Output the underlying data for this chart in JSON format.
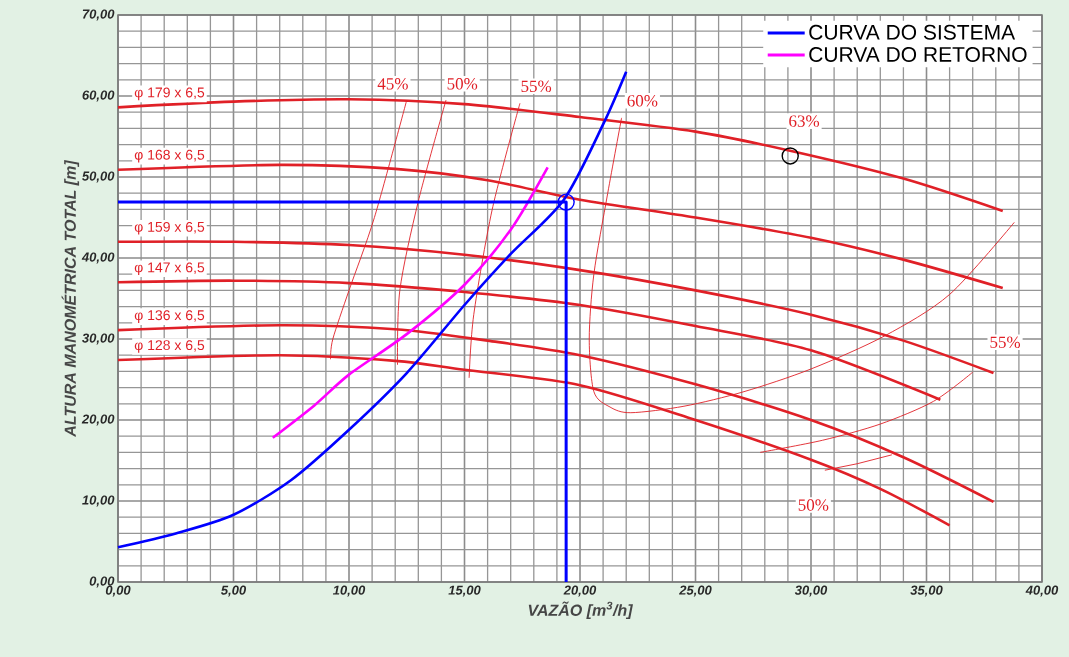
{
  "chart_data": {
    "type": "line",
    "xlabel": "VAZÃO [m$^{3}$/h]",
    "ylabel": "ALTURA MANOMÉTRICA TOTAL [m]",
    "xlim": [
      0,
      40
    ],
    "ylim": [
      0,
      70
    ],
    "xticks": [
      {
        "value": 0,
        "label": "0,00"
      },
      {
        "value": 5,
        "label": "5,00"
      },
      {
        "value": 10,
        "label": "10,00"
      },
      {
        "value": 15,
        "label": "15,00"
      },
      {
        "value": 20,
        "label": "20,00"
      },
      {
        "value": 25,
        "label": "25,00"
      },
      {
        "value": 30,
        "label": "30,00"
      },
      {
        "value": 35,
        "label": "35,00"
      },
      {
        "value": 40,
        "label": "40,00"
      }
    ],
    "yticks": [
      {
        "value": 0,
        "label": "0,00"
      },
      {
        "value": 10,
        "label": "10,00"
      },
      {
        "value": 20,
        "label": "20,00"
      },
      {
        "value": 30,
        "label": "30,00"
      },
      {
        "value": 40,
        "label": "40,00"
      },
      {
        "value": 50,
        "label": "50,00"
      },
      {
        "value": 60,
        "label": "60,00"
      },
      {
        "value": 70,
        "label": "70,00"
      }
    ],
    "grid": true,
    "legend": "top right",
    "series": [
      {
        "name": "φ 179 x 6,5",
        "color": "#e02027",
        "x": [
          0,
          5,
          10,
          15,
          20,
          25,
          29,
          34,
          38.3
        ],
        "values": [
          58.6,
          59.3,
          59.6,
          59.0,
          57.4,
          55.6,
          53.3,
          49.8,
          45.8
        ]
      },
      {
        "name": "φ 168 x 6,5",
        "color": "#e02027",
        "x": [
          0,
          7,
          12,
          16,
          20,
          25,
          30,
          34,
          38.3
        ],
        "values": [
          50.9,
          51.5,
          51.0,
          49.6,
          47.2,
          45.0,
          42.5,
          39.8,
          36.3
        ]
      },
      {
        "name": "φ 159 x 6,5",
        "color": "#e02027",
        "x": [
          0,
          5,
          10,
          15,
          20,
          25,
          30,
          34,
          37.9
        ],
        "values": [
          42.0,
          42.0,
          41.6,
          40.4,
          38.5,
          36.0,
          33.0,
          29.8,
          25.8
        ]
      },
      {
        "name": "φ 147 x 6,5",
        "color": "#e02027",
        "x": [
          0,
          5,
          10,
          15,
          20,
          25,
          30,
          35.6
        ],
        "values": [
          37.0,
          37.2,
          36.9,
          35.8,
          34.2,
          31.6,
          28.6,
          22.5
        ]
      },
      {
        "name": "φ 136 x 6,5",
        "color": "#e02027",
        "x": [
          0,
          7,
          12,
          16,
          20,
          25,
          30,
          34,
          37.9
        ],
        "values": [
          31.1,
          31.7,
          31.2,
          29.8,
          28.0,
          24.4,
          20.0,
          15.4,
          9.9
        ]
      },
      {
        "name": "φ 128 x 6,5",
        "color": "#e02027",
        "x": [
          0,
          7,
          12,
          15,
          20,
          25,
          30,
          33,
          36
        ],
        "values": [
          27.4,
          28.0,
          27.3,
          26.2,
          24.3,
          20.0,
          15.1,
          11.5,
          7.0
        ]
      },
      {
        "color": "#e02027",
        "x": [
          12.5,
          11.1,
          10.0,
          9.3,
          9.2
        ],
        "values": [
          59.5,
          45.0,
          36.0,
          30.0,
          27.5
        ]
      },
      {
        "color": "#e02027",
        "x": [
          14.2,
          13.0,
          12.2,
          12.1
        ],
        "values": [
          59.5,
          47.0,
          36.0,
          26.8
        ]
      },
      {
        "color": "#e02027",
        "x": [
          17.4,
          16.2,
          15.4,
          15.2
        ],
        "values": [
          59.1,
          46.0,
          33.0,
          25.2
        ]
      },
      {
        "color": "#e02027",
        "x": [
          21.8,
          21.2,
          20.6,
          20.4,
          20.6,
          21.3,
          22.2,
          24.5,
          27.1,
          30.0,
          33.2,
          36.0,
          38.8
        ],
        "values": [
          57.3,
          48.0,
          38.0,
          30.0,
          23.5,
          21.6,
          20.9,
          21.7,
          23.5,
          26.3,
          30.4,
          35.5,
          44.4
        ]
      },
      {
        "color": "#e02027",
        "x": [
          27.8,
          30.5,
          33.0,
          35.3,
          37.0
        ],
        "values": [
          16.0,
          17.5,
          19.5,
          22.3,
          25.9
        ]
      },
      {
        "color": "#e02027",
        "x": [
          30.6,
          32.0,
          33.5
        ],
        "values": [
          13.8,
          14.6,
          15.7
        ]
      },
      {
        "name": "CURVA DO SISTEMA",
        "color": "#0000ff",
        "x": [
          0,
          2.5,
          5,
          7.5,
          10,
          12.5,
          15,
          17,
          19.3,
          21,
          22
        ],
        "values": [
          4.3,
          6.0,
          8.3,
          12.6,
          18.8,
          25.8,
          34.2,
          40.5,
          47.2,
          56.5,
          63.0
        ]
      },
      {
        "name": "CURVA DO RETORNO",
        "color": "#ff00ff",
        "x": [
          6.7,
          8.5,
          10,
          12.5,
          15,
          17,
          18.6
        ],
        "values": [
          17.8,
          21.8,
          25.6,
          30.6,
          36.7,
          43.5,
          51.2
        ]
      },
      {
        "color": "#0000ff",
        "x": [
          0,
          19.4,
          19.4
        ],
        "values": [
          46.9,
          46.9,
          0
        ]
      },
      {
        "type": "scatter",
        "marker": "circle",
        "color": "#0000ff",
        "x": [
          19.4
        ],
        "values": [
          46.9
        ]
      },
      {
        "type": "scatter",
        "marker": "circle",
        "color": "#000000",
        "x": [
          29.1
        ],
        "values": [
          52.6
        ]
      }
    ],
    "annotations": [
      {
        "text": "45%",
        "x": 11.9,
        "y": 61.5
      },
      {
        "text": "50%",
        "x": 14.9,
        "y": 61.5
      },
      {
        "text": "55%",
        "x": 18.1,
        "y": 61.2
      },
      {
        "text": "60%",
        "x": 22.7,
        "y": 59.4
      },
      {
        "text": "63%",
        "x": 29.7,
        "y": 56.9
      },
      {
        "text": "55%",
        "x": 38.4,
        "y": 29.6
      },
      {
        "text": "50%",
        "x": 30.1,
        "y": 9.5
      }
    ]
  }
}
